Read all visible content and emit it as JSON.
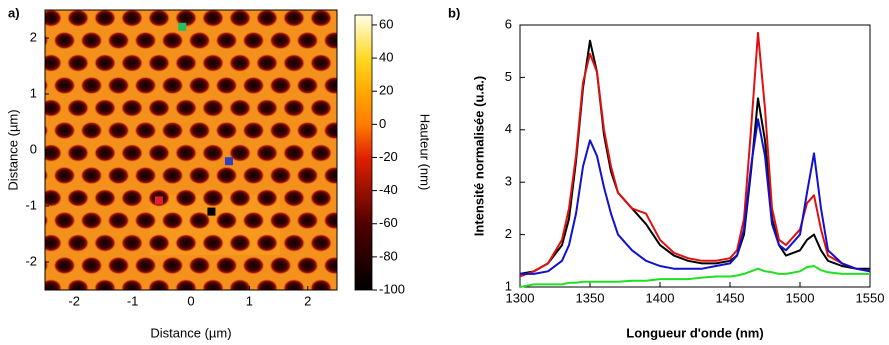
{
  "chart_data": [
    {
      "type": "heatmap",
      "panel_label": "a)",
      "xlabel": "Distance (µm)",
      "ylabel": "Distance (µm)",
      "colorbar_label": "Hauteur (nm)",
      "xlim": [
        -2.5,
        2.5
      ],
      "xticks": [
        -2,
        -1,
        0,
        1,
        2
      ],
      "ylim": [
        -2.5,
        2.5
      ],
      "yticks": [
        -2,
        -1,
        0,
        1,
        2
      ],
      "zlim": [
        -100,
        66
      ],
      "zticks": [
        -100,
        -80,
        -60,
        -40,
        -20,
        0,
        20,
        40,
        60
      ],
      "markers": [
        {
          "x": -0.15,
          "y": 2.2,
          "color": "#22c060"
        },
        {
          "x": 0.65,
          "y": -0.2,
          "color": "#3040c0"
        },
        {
          "x": -0.55,
          "y": -0.9,
          "color": "#e02030"
        },
        {
          "x": 0.35,
          "y": -1.1,
          "color": "#000000"
        }
      ]
    },
    {
      "type": "line",
      "panel_label": "b)",
      "xlabel": "Longueur d'onde (nm)",
      "ylabel": "Intensité normalisée (u.a.)",
      "x": [
        1300,
        1310,
        1320,
        1330,
        1335,
        1340,
        1345,
        1350,
        1355,
        1360,
        1365,
        1370,
        1380,
        1390,
        1400,
        1410,
        1420,
        1430,
        1440,
        1450,
        1455,
        1460,
        1465,
        1470,
        1475,
        1480,
        1485,
        1490,
        1500,
        1505,
        1510,
        1515,
        1520,
        1530,
        1540,
        1550
      ],
      "series": [
        {
          "color": "#000000",
          "values": [
            1.25,
            1.3,
            1.45,
            1.8,
            2.3,
            3.4,
            4.8,
            5.7,
            5.1,
            3.9,
            3.2,
            2.8,
            2.5,
            2.2,
            1.8,
            1.6,
            1.5,
            1.45,
            1.45,
            1.5,
            1.6,
            2.0,
            3.2,
            4.6,
            3.8,
            2.3,
            1.8,
            1.6,
            1.7,
            1.9,
            2.0,
            1.7,
            1.5,
            1.4,
            1.35,
            1.35
          ]
        },
        {
          "color": "#e01010",
          "values": [
            1.2,
            1.3,
            1.45,
            1.9,
            2.5,
            3.5,
            4.9,
            5.45,
            5.1,
            4.0,
            3.3,
            2.8,
            2.5,
            2.4,
            1.9,
            1.65,
            1.55,
            1.5,
            1.5,
            1.55,
            1.7,
            2.3,
            4.0,
            5.85,
            4.4,
            2.5,
            1.9,
            1.8,
            2.1,
            2.6,
            2.75,
            2.1,
            1.6,
            1.45,
            1.35,
            1.3
          ]
        },
        {
          "color": "#1010d0",
          "values": [
            1.25,
            1.25,
            1.3,
            1.5,
            1.8,
            2.4,
            3.3,
            3.8,
            3.5,
            2.9,
            2.4,
            2.0,
            1.7,
            1.5,
            1.4,
            1.35,
            1.35,
            1.35,
            1.4,
            1.45,
            1.6,
            2.1,
            3.3,
            4.2,
            3.5,
            2.2,
            1.8,
            1.7,
            2.0,
            2.8,
            3.55,
            2.5,
            1.7,
            1.45,
            1.35,
            1.3
          ]
        },
        {
          "color": "#20e020",
          "values": [
            1.0,
            1.05,
            1.05,
            1.05,
            1.08,
            1.08,
            1.1,
            1.1,
            1.1,
            1.1,
            1.1,
            1.1,
            1.12,
            1.12,
            1.15,
            1.15,
            1.15,
            1.18,
            1.2,
            1.2,
            1.22,
            1.25,
            1.3,
            1.35,
            1.3,
            1.28,
            1.25,
            1.25,
            1.3,
            1.38,
            1.4,
            1.32,
            1.28,
            1.25,
            1.25,
            1.25
          ]
        }
      ],
      "xlim": [
        1300,
        1550
      ],
      "xticks": [
        1300,
        1350,
        1400,
        1450,
        1500,
        1550
      ],
      "ylim": [
        1,
        6
      ],
      "yticks": [
        1,
        2,
        3,
        4,
        5,
        6
      ]
    }
  ]
}
